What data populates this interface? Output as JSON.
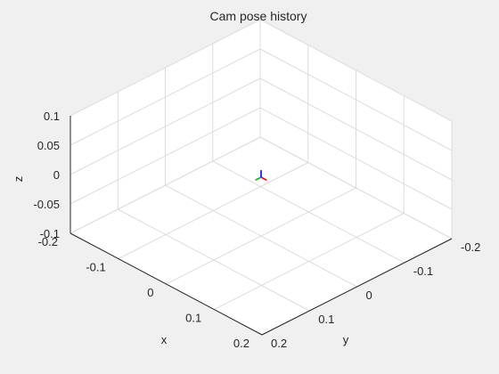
{
  "figure": {
    "background": "#f0f0f0",
    "axes_color": "#ffffff",
    "grid_color": "#dcdcdc",
    "box_color": "#c8c8c8"
  },
  "chart_data": {
    "type": "scatter",
    "projection": "3d",
    "title": "Cam pose history",
    "xlabel": "x",
    "ylabel": "y",
    "zlabel": "z",
    "xlim": [
      -0.2,
      0.2
    ],
    "ylim": [
      -0.2,
      0.2
    ],
    "zlim": [
      -0.1,
      0.1
    ],
    "grid": true,
    "xticks": [
      -0.2,
      -0.1,
      0,
      0.1,
      0.2
    ],
    "yticks": [
      -0.2,
      -0.1,
      0,
      0.1,
      0.2
    ],
    "zticks": [
      -0.1,
      -0.05,
      0,
      0.05,
      0.1
    ],
    "xtick_labels": [
      "-0.2",
      "-0.1",
      "0",
      "0.1",
      "0.2"
    ],
    "ytick_labels": [
      "-0.2",
      "-0.1",
      "0",
      "0.1",
      "0.2"
    ],
    "ztick_labels": [
      "-0.1",
      "-0.05",
      "0",
      "0.05",
      "0.1"
    ],
    "series": [
      {
        "marker": "camera-frame-axes",
        "origin": [
          0,
          0,
          0
        ],
        "axes": [
          {
            "axis": "x",
            "color": "#ff0000",
            "vector": [
              0.012,
              0,
              0
            ]
          },
          {
            "axis": "y",
            "color": "#00c000",
            "vector": [
              0,
              0.012,
              0
            ]
          },
          {
            "axis": "z",
            "color": "#0000ff",
            "vector": [
              0,
              0,
              0.012
            ]
          }
        ]
      }
    ]
  }
}
